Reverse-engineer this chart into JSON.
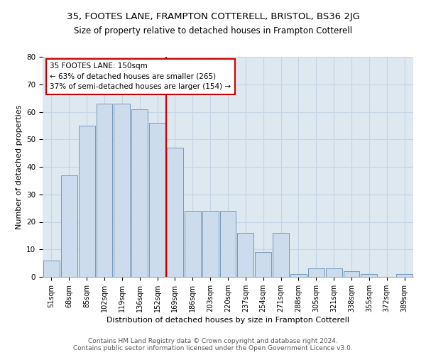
{
  "title1": "35, FOOTES LANE, FRAMPTON COTTERELL, BRISTOL, BS36 2JG",
  "title2": "Size of property relative to detached houses in Frampton Cotterell",
  "xlabel": "Distribution of detached houses by size in Frampton Cotterell",
  "ylabel": "Number of detached properties",
  "categories": [
    "51sqm",
    "68sqm",
    "85sqm",
    "102sqm",
    "119sqm",
    "136sqm",
    "152sqm",
    "169sqm",
    "186sqm",
    "203sqm",
    "220sqm",
    "237sqm",
    "254sqm",
    "271sqm",
    "288sqm",
    "305sqm",
    "321sqm",
    "338sqm",
    "355sqm",
    "372sqm",
    "389sqm"
  ],
  "values": [
    6,
    37,
    55,
    63,
    63,
    61,
    56,
    47,
    24,
    24,
    24,
    16,
    9,
    16,
    1,
    3,
    3,
    2,
    1,
    0,
    1
  ],
  "bar_color": "#ccdcec",
  "bar_edge_color": "#7799bb",
  "annotation_text": "35 FOOTES LANE: 150sqm\n← 63% of detached houses are smaller (265)\n37% of semi-detached houses are larger (154) →",
  "annotation_box_color": "#ffffff",
  "annotation_box_edge": "#cc0000",
  "vline_color": "#cc0000",
  "ylim": [
    0,
    80
  ],
  "yticks": [
    0,
    10,
    20,
    30,
    40,
    50,
    60,
    70,
    80
  ],
  "grid_color": "#c5d5e5",
  "background_color": "#dde8f0",
  "footer1": "Contains HM Land Registry data © Crown copyright and database right 2024.",
  "footer2": "Contains public sector information licensed under the Open Government Licence v3.0.",
  "title1_fontsize": 9.5,
  "title2_fontsize": 8.5,
  "xlabel_fontsize": 8,
  "ylabel_fontsize": 8,
  "annotation_fontsize": 7.5,
  "footer_fontsize": 6.5,
  "tick_fontsize": 7
}
